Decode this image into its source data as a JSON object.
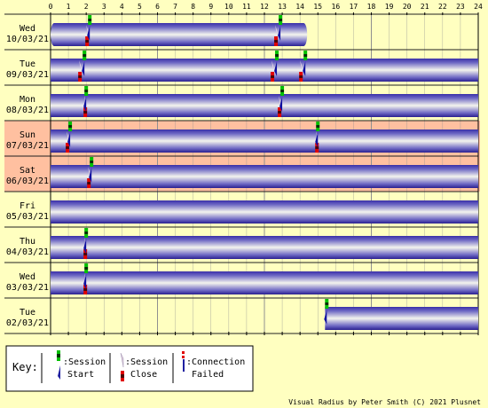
{
  "chart_data": {
    "type": "timeline",
    "x_ticks": [
      "0",
      "1",
      "2",
      "3",
      "4",
      "5",
      "6",
      "7",
      "8",
      "9",
      "10",
      "11",
      "12",
      "13",
      "14",
      "15",
      "16",
      "17",
      "18",
      "19",
      "20",
      "21",
      "22",
      "23",
      "24"
    ],
    "xlim": [
      0,
      24
    ],
    "days": [
      {
        "day": "Wed",
        "date": "10/03/21",
        "weekend": false,
        "online": [
          [
            0,
            14.4
          ]
        ],
        "session_starts": [
          2.1,
          12.8
        ],
        "session_closes": [
          2.0,
          12.6
        ],
        "failed": []
      },
      {
        "day": "Tue",
        "date": "09/03/21",
        "weekend": false,
        "online": [
          [
            0,
            24
          ]
        ],
        "session_starts": [
          1.8,
          12.6,
          14.2
        ],
        "session_closes": [
          1.6,
          12.4,
          14.0
        ],
        "failed": []
      },
      {
        "day": "Mon",
        "date": "08/03/21",
        "weekend": false,
        "online": [
          [
            0,
            24
          ]
        ],
        "session_starts": [
          1.9,
          12.9
        ],
        "session_closes": [
          1.9,
          12.8
        ],
        "failed": []
      },
      {
        "day": "Sun",
        "date": "07/03/21",
        "weekend": true,
        "online": [
          [
            0,
            24
          ]
        ],
        "session_starts": [
          1.0,
          14.9
        ],
        "session_closes": [
          0.9,
          14.9
        ],
        "failed": []
      },
      {
        "day": "Sat",
        "date": "06/03/21",
        "weekend": true,
        "online": [
          [
            0,
            24
          ]
        ],
        "session_starts": [
          2.2
        ],
        "session_closes": [
          2.1
        ],
        "failed": []
      },
      {
        "day": "Fri",
        "date": "05/03/21",
        "weekend": false,
        "online": [
          [
            0,
            24
          ]
        ],
        "session_starts": [],
        "session_closes": [],
        "failed": []
      },
      {
        "day": "Thu",
        "date": "04/03/21",
        "weekend": false,
        "online": [
          [
            0,
            24
          ]
        ],
        "session_starts": [
          1.9
        ],
        "session_closes": [
          1.9
        ],
        "failed": []
      },
      {
        "day": "Wed",
        "date": "03/03/21",
        "weekend": false,
        "online": [
          [
            0,
            24
          ]
        ],
        "session_starts": [
          1.9
        ],
        "session_closes": [
          1.9
        ],
        "failed": []
      },
      {
        "day": "Tue",
        "date": "02/03/21",
        "weekend": false,
        "online": [
          [
            15.4,
            24
          ]
        ],
        "session_starts": [
          15.4
        ],
        "session_closes": [],
        "failed": []
      }
    ]
  },
  "key": {
    "title": "Key:",
    "start_l1": ":Session",
    "start_l2": "Start",
    "close_l1": ":Session",
    "close_l2": "Close",
    "failed_l1": ":Connection",
    "failed_l2": "Failed"
  },
  "credit": "Visual Radius by Peter Smith (C) 2021 Plusnet",
  "colors": {
    "background": "#ffffc0",
    "weekend": "#ffc0a0",
    "online_dark": "#3a30a8",
    "online_light": "#f0f0e8",
    "grid": "#909090",
    "start_green": "#00c000",
    "close_red": "#e00000"
  }
}
